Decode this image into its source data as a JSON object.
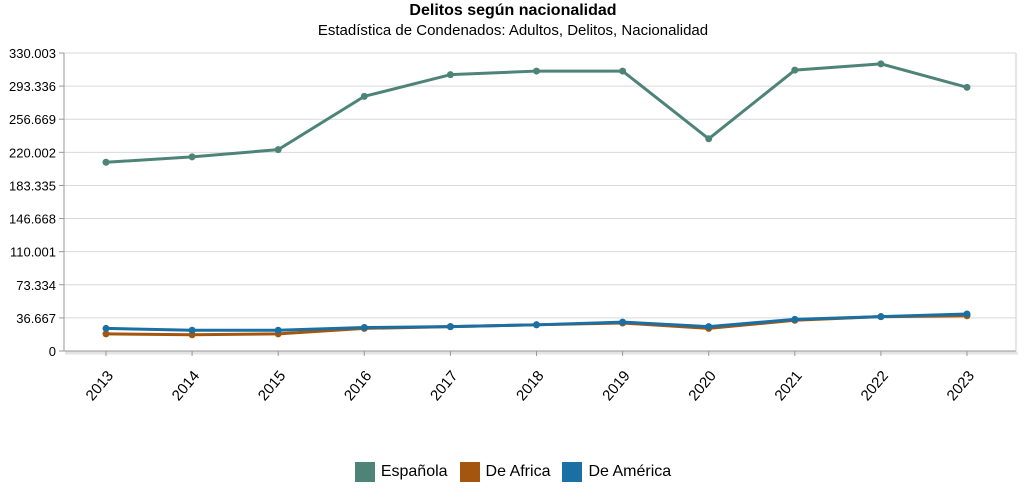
{
  "chart_data": {
    "type": "line",
    "title": "Delitos según nacionalidad",
    "subtitle": "Estadística de Condenados: Adultos, Delitos, Nacionalidad",
    "categories": [
      "2013",
      "2014",
      "2015",
      "2016",
      "2017",
      "2018",
      "2019",
      "2020",
      "2021",
      "2022",
      "2023"
    ],
    "ylim": [
      0,
      330.003
    ],
    "yticks": [
      0,
      36.667,
      73.334,
      110.001,
      146.668,
      183.335,
      220.002,
      256.669,
      293.336,
      330.003
    ],
    "ytick_labels": [
      "0",
      "36.667",
      "73.334",
      "110.001",
      "146.668",
      "183.335",
      "220.002",
      "256.669",
      "293.336",
      "330.003"
    ],
    "grid": true,
    "legend_position": "bottom-center",
    "series": [
      {
        "name": "Española",
        "color": "#4e8478",
        "values": [
          209,
          215,
          223,
          282,
          306,
          310,
          310,
          235,
          311,
          318,
          292
        ]
      },
      {
        "name": "De Africa",
        "color": "#a4560f",
        "values": [
          19,
          18,
          19,
          25,
          27,
          29,
          31,
          25,
          34,
          38,
          39
        ]
      },
      {
        "name": "De América",
        "color": "#1a6fa3",
        "values": [
          25,
          23,
          23,
          26,
          27,
          29,
          32,
          27,
          35,
          38,
          41
        ]
      }
    ]
  }
}
